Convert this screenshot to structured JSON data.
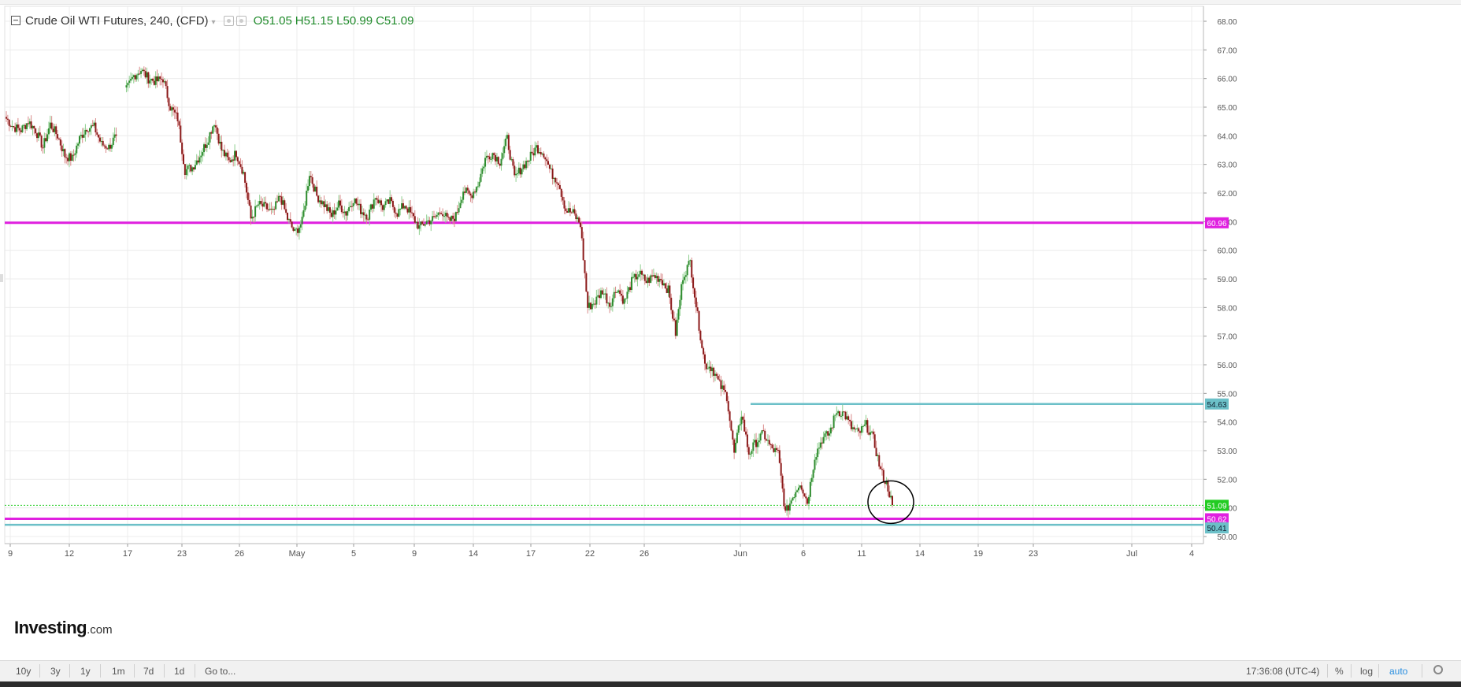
{
  "legend": {
    "symbol": "Crude Oil WTI Futures, 240, (CFD)",
    "open": "O51.05",
    "high": "H51.15",
    "low": "L50.99",
    "close": "C51.09"
  },
  "logo": {
    "name": "Investing",
    "suffix": ".com"
  },
  "bottom_bar": {
    "ranges": [
      "10y",
      "3y",
      "1y",
      "1m",
      "7d",
      "1d"
    ],
    "goto": "Go to...",
    "time": "17:36:08 (UTC-4)",
    "percent": "%",
    "log": "log",
    "auto": "auto"
  },
  "colors": {
    "up": "#2e8b2e",
    "down": "#8b1a1a",
    "support": "#e020e0",
    "resistance": "#6cc0c8",
    "last_price": "#22cc22",
    "grid": "#ececec"
  },
  "chart_data": {
    "type": "candlestick",
    "title": "Crude Oil WTI Futures, 240, (CFD)",
    "timeframe": "240",
    "y_axis_ticks": [
      "68.00",
      "67.00",
      "66.00",
      "65.00",
      "64.00",
      "63.00",
      "62.00",
      "61.00",
      "60.00",
      "59.00",
      "58.00",
      "57.00",
      "56.00",
      "55.00",
      "54.00",
      "53.00",
      "52.00",
      "51.00",
      "50.00"
    ],
    "x_axis_ticks": [
      "9",
      "12",
      "17",
      "23",
      "26",
      "May",
      "5",
      "9",
      "14",
      "17",
      "22",
      "26",
      "Jun",
      "6",
      "11",
      "14",
      "19",
      "23",
      "Jul",
      "4"
    ],
    "ylim": [
      49.6,
      68.4
    ],
    "last_price": {
      "value": 51.09,
      "label": "51.09"
    },
    "horizontal_lines": [
      {
        "value": 60.96,
        "label": "60.96",
        "color": "#e020e0"
      },
      {
        "value": 54.63,
        "label": "54.63",
        "color": "#6cc0c8",
        "starts_at": "Jun 1"
      },
      {
        "value": 50.62,
        "label": "50.62",
        "color": "#e020e0"
      },
      {
        "value": 50.41,
        "label": "50.41",
        "color": "#6cc0c8"
      }
    ],
    "annotation": {
      "type": "circle",
      "around": "last candle"
    },
    "path": [
      [
        0,
        64.6
      ],
      [
        5,
        64.3
      ],
      [
        10,
        64.2
      ],
      [
        15,
        64.5
      ],
      [
        20,
        64.2
      ],
      [
        25,
        63.6
      ],
      [
        30,
        64.4
      ],
      [
        35,
        64.0
      ],
      [
        40,
        63.3
      ],
      [
        45,
        63.2
      ],
      [
        50,
        63.9
      ],
      [
        55,
        64.3
      ],
      [
        60,
        64.3
      ],
      [
        65,
        63.7
      ],
      [
        70,
        63.6
      ],
      [
        75,
        64.0
      ],
      [
        78,
        null
      ],
      [
        82,
        65.6
      ],
      [
        87,
        66.1
      ],
      [
        92,
        66.3
      ],
      [
        97,
        66.0
      ],
      [
        102,
        65.9
      ],
      [
        107,
        66.0
      ],
      [
        112,
        65.0
      ],
      [
        117,
        64.6
      ],
      [
        122,
        62.8
      ],
      [
        127,
        62.9
      ],
      [
        132,
        63.3
      ],
      [
        137,
        63.8
      ],
      [
        142,
        64.5
      ],
      [
        147,
        63.5
      ],
      [
        152,
        63.1
      ],
      [
        157,
        63.4
      ],
      [
        162,
        62.7
      ],
      [
        167,
        61.1
      ],
      [
        172,
        61.6
      ],
      [
        177,
        61.5
      ],
      [
        182,
        61.3
      ],
      [
        187,
        61.9
      ],
      [
        192,
        61.1
      ],
      [
        197,
        60.6
      ],
      [
        202,
        61.0
      ],
      [
        207,
        62.7
      ],
      [
        212,
        61.9
      ],
      [
        217,
        61.6
      ],
      [
        222,
        61.2
      ],
      [
        227,
        61.6
      ],
      [
        232,
        61.3
      ],
      [
        237,
        61.8
      ],
      [
        242,
        61.4
      ],
      [
        247,
        61.2
      ],
      [
        252,
        61.9
      ],
      [
        257,
        61.5
      ],
      [
        262,
        61.7
      ],
      [
        267,
        61.3
      ],
      [
        272,
        61.6
      ],
      [
        277,
        61.2
      ],
      [
        282,
        60.8
      ],
      [
        287,
        61.0
      ],
      [
        292,
        61.1
      ],
      [
        297,
        61.4
      ],
      [
        302,
        61.0
      ],
      [
        307,
        61.2
      ],
      [
        312,
        62.1
      ],
      [
        317,
        61.9
      ],
      [
        322,
        62.3
      ],
      [
        327,
        63.2
      ],
      [
        332,
        63.4
      ],
      [
        337,
        63.1
      ],
      [
        342,
        63.9
      ],
      [
        347,
        62.5
      ],
      [
        352,
        62.9
      ],
      [
        357,
        63.2
      ],
      [
        362,
        63.6
      ],
      [
        367,
        63.4
      ],
      [
        372,
        62.7
      ],
      [
        377,
        62.4
      ],
      [
        382,
        61.4
      ],
      [
        387,
        61.3
      ],
      [
        392,
        60.9
      ],
      [
        397,
        58.0
      ],
      [
        402,
        58.2
      ],
      [
        407,
        58.6
      ],
      [
        412,
        58.1
      ],
      [
        417,
        58.7
      ],
      [
        422,
        58.2
      ],
      [
        427,
        58.9
      ],
      [
        432,
        59.2
      ],
      [
        437,
        58.9
      ],
      [
        442,
        59.1
      ],
      [
        447,
        59.0
      ],
      [
        452,
        58.6
      ],
      [
        457,
        57.1
      ],
      [
        462,
        59.1
      ],
      [
        467,
        59.6
      ],
      [
        472,
        57.7
      ],
      [
        477,
        56.0
      ],
      [
        482,
        55.9
      ],
      [
        487,
        55.3
      ],
      [
        492,
        54.9
      ],
      [
        497,
        52.9
      ],
      [
        502,
        54.3
      ],
      [
        507,
        52.9
      ],
      [
        512,
        53.3
      ],
      [
        517,
        53.6
      ],
      [
        522,
        53.1
      ],
      [
        527,
        52.9
      ],
      [
        532,
        50.8
      ],
      [
        537,
        51.4
      ],
      [
        542,
        51.9
      ],
      [
        547,
        51.2
      ],
      [
        552,
        52.8
      ],
      [
        557,
        53.4
      ],
      [
        562,
        53.6
      ],
      [
        567,
        54.4
      ],
      [
        572,
        54.3
      ],
      [
        577,
        53.8
      ],
      [
        582,
        53.6
      ],
      [
        587,
        53.9
      ],
      [
        592,
        53.4
      ],
      [
        597,
        52.3
      ],
      [
        602,
        51.7
      ],
      [
        605,
        51.1
      ]
    ]
  }
}
